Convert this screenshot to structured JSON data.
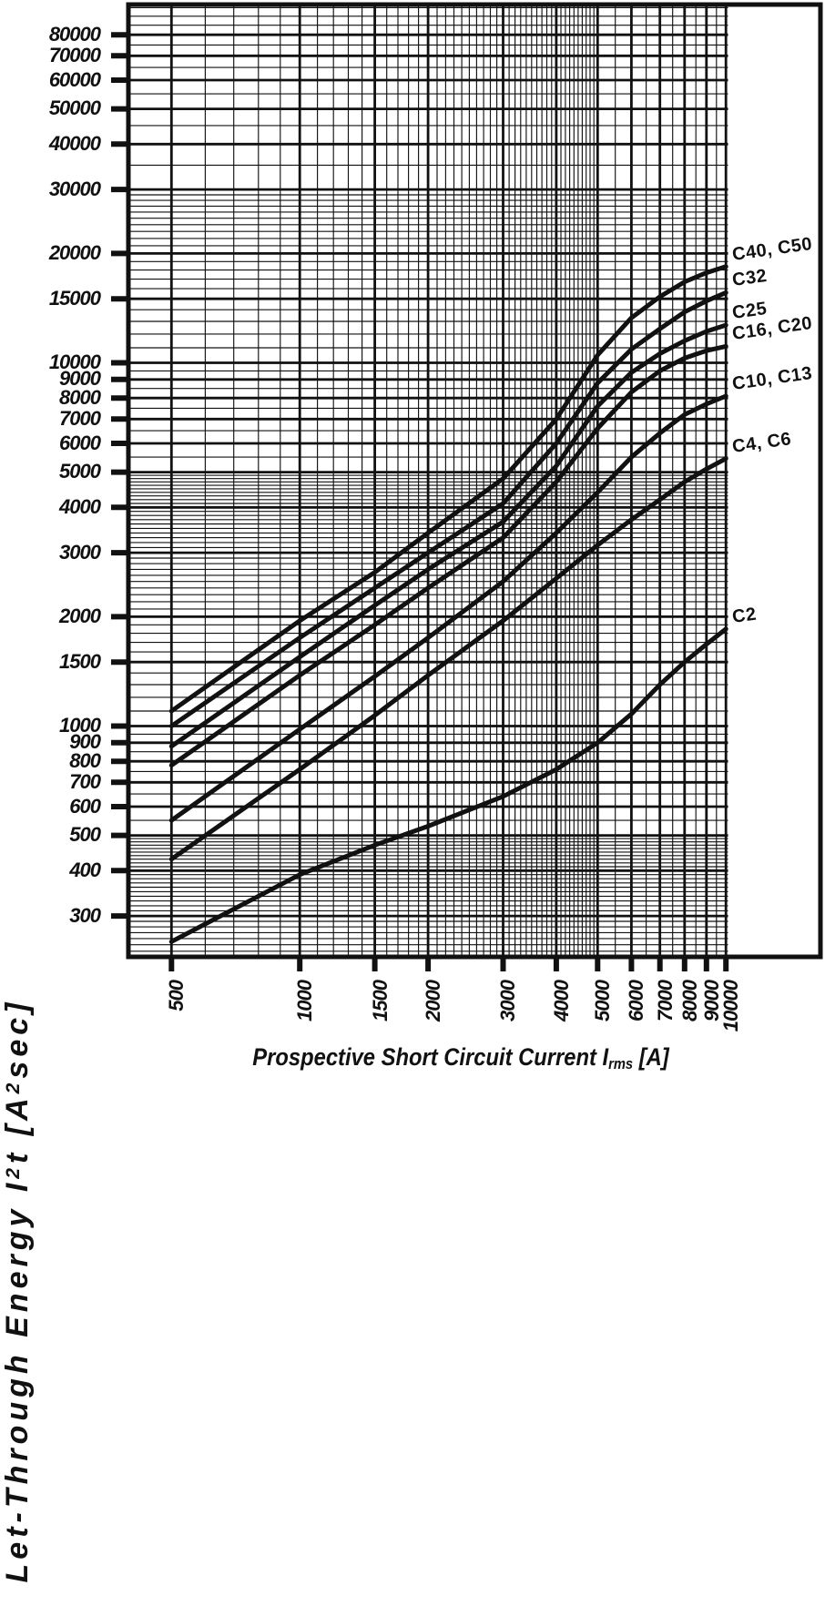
{
  "figure": {
    "background": "#ffffff",
    "line_color": "#111111"
  },
  "chart_data": {
    "type": "line",
    "x_scale": "log",
    "y_scale": "log",
    "x_range": [
      396,
      10100
    ],
    "y_range": [
      231,
      97000
    ],
    "grid": true,
    "legend_position": "right-margin-labels",
    "x_axis": {
      "title_plain": "Prospective Short Circuit Current Irms [A]",
      "title_parts": [
        {
          "text": "Prospective Short Circuit Current I"
        },
        {
          "sub": "rms"
        },
        {
          "text": " [A]"
        }
      ],
      "tick_values": [
        500,
        1000,
        1500,
        2000,
        3000,
        4000,
        5000,
        6000,
        7000,
        8000,
        9000,
        10000
      ],
      "minor_rules": [
        [
          400,
          5000,
          100
        ],
        [
          5000,
          10000,
          500
        ]
      ]
    },
    "y_axis": {
      "title_plain": "Let-Through Energy I²t [A²sec]",
      "title_parts": [
        {
          "text": "Let-Through Energy I"
        },
        {
          "sup": "2"
        },
        {
          "text": "t [A"
        },
        {
          "sup": "2"
        },
        {
          "text": "sec]"
        }
      ],
      "tick_values": [
        300,
        400,
        500,
        600,
        700,
        800,
        900,
        1000,
        1500,
        2000,
        3000,
        4000,
        5000,
        6000,
        7000,
        8000,
        9000,
        10000,
        15000,
        20000,
        30000,
        40000,
        50000,
        60000,
        70000,
        80000
      ],
      "minor_rules": [
        [
          240,
          500,
          10
        ],
        [
          500,
          1000,
          50
        ],
        [
          1000,
          5000,
          100
        ],
        [
          5000,
          10000,
          500
        ],
        [
          10000,
          30000,
          1000
        ],
        [
          30000,
          95000,
          5000
        ]
      ]
    },
    "series": [
      {
        "name": "C40, C50",
        "x": [
          500,
          1000,
          1500,
          2000,
          3000,
          4000,
          5000,
          6000,
          7000,
          8000,
          9000,
          10000
        ],
        "y": [
          1100,
          1950,
          2650,
          3400,
          4800,
          7000,
          10500,
          13300,
          15200,
          16700,
          17700,
          18400
        ]
      },
      {
        "name": "C32",
        "x": [
          500,
          1000,
          1500,
          2000,
          3000,
          4000,
          5000,
          6000,
          7000,
          8000,
          9000,
          10000
        ],
        "y": [
          1000,
          1750,
          2400,
          3000,
          4100,
          6000,
          8800,
          10900,
          12400,
          13800,
          14800,
          15600
        ]
      },
      {
        "name": "C25",
        "x": [
          500,
          1000,
          1500,
          2000,
          3000,
          4000,
          5000,
          6000,
          7000,
          8000,
          9000,
          10000
        ],
        "y": [
          880,
          1550,
          2150,
          2700,
          3650,
          5200,
          7600,
          9400,
          10600,
          11500,
          12200,
          12700
        ]
      },
      {
        "name": "C16, C20",
        "x": [
          500,
          1000,
          1500,
          2000,
          3000,
          4000,
          5000,
          6000,
          7000,
          8000,
          9000,
          10000
        ],
        "y": [
          780,
          1380,
          1900,
          2400,
          3300,
          4700,
          6600,
          8300,
          9500,
          10300,
          10800,
          11100
        ]
      },
      {
        "name": "C10, C13",
        "x": [
          500,
          1000,
          1500,
          2000,
          3000,
          4000,
          5000,
          6000,
          7000,
          8000,
          9000,
          10000
        ],
        "y": [
          550,
          980,
          1370,
          1750,
          2500,
          3400,
          4400,
          5500,
          6400,
          7200,
          7700,
          8100
        ]
      },
      {
        "name": "C4, C6",
        "x": [
          500,
          1000,
          1500,
          2000,
          3000,
          4000,
          5000,
          6000,
          7000,
          8000,
          9000,
          10000
        ],
        "y": [
          430,
          760,
          1070,
          1380,
          1950,
          2550,
          3150,
          3700,
          4200,
          4700,
          5100,
          5450
        ]
      },
      {
        "name": "C2",
        "x": [
          500,
          1000,
          1500,
          2000,
          3000,
          4000,
          5000,
          6000,
          7000,
          8000,
          9000,
          10000
        ],
        "y": [
          255,
          390,
          470,
          530,
          640,
          760,
          900,
          1080,
          1300,
          1500,
          1680,
          1850
        ]
      }
    ]
  }
}
